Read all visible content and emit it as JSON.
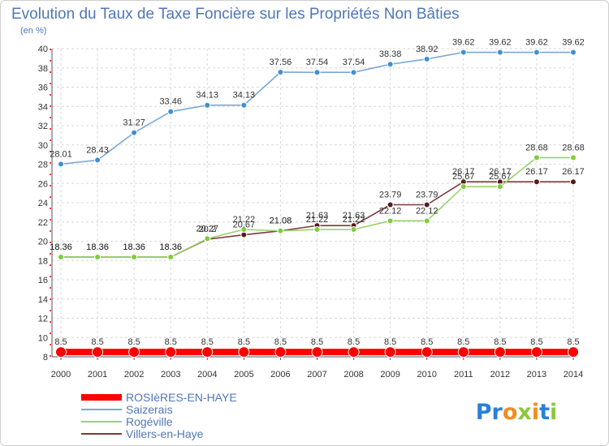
{
  "colors": {
    "grid": "#d9d9d9",
    "axis": "#555555",
    "accent_red": "#ff0000",
    "title": "#4f77b8",
    "logo_blue": "#2b7fd6",
    "logo_orange": "#f28c1e",
    "logo_green": "#8cc63f"
  },
  "logo": {
    "text": "Proxiti"
  },
  "chart_data": {
    "type": "line",
    "title": "Evolution du Taux de Taxe Foncière sur les Propriétés Non Bâties",
    "subtitle": "(en %)",
    "xlabel": "",
    "ylabel": "(en %)",
    "x": [
      "2000",
      "2001",
      "2002",
      "2003",
      "2004",
      "2005",
      "2006",
      "2007",
      "2008",
      "2009",
      "2010",
      "2011",
      "2012",
      "2013",
      "2014"
    ],
    "ylim": [
      8,
      40
    ],
    "yticks": [
      8,
      10,
      12,
      14,
      16,
      18,
      20,
      22,
      24,
      26,
      28,
      30,
      32,
      34,
      36,
      38,
      40
    ],
    "grid": true,
    "legend_position": "bottom-left",
    "series": [
      {
        "name": "ROSIèRES-EN-HAYE",
        "color": "#ff0000",
        "point_color": "#ff0000",
        "values": [
          8.5,
          8.5,
          8.5,
          8.5,
          8.5,
          8.5,
          8.5,
          8.5,
          8.5,
          8.5,
          8.5,
          8.5,
          8.5,
          8.5,
          8.5
        ],
        "labels": [
          "8.5",
          "8.5",
          "8.5",
          "8.5",
          "8.5",
          "8.5",
          "8.5",
          "8.5",
          "8.5",
          "8.5",
          "8.5",
          "8.5",
          "8.5",
          "8.5",
          "8.5"
        ]
      },
      {
        "name": "Saizerais",
        "color": "#7aa7d4",
        "point_color": "#3f8fd2",
        "values": [
          28.01,
          28.43,
          31.27,
          33.46,
          34.13,
          34.13,
          37.56,
          37.54,
          37.54,
          38.38,
          38.92,
          39.62,
          39.62,
          39.62,
          39.62
        ],
        "labels": [
          "28.01",
          "28.43",
          "31.27",
          "33.46",
          "34.13",
          "34.13",
          "37.56",
          "37.54",
          "37.54",
          "38.38",
          "38.92",
          "39.62",
          "39.62",
          "39.62",
          "39.62"
        ]
      },
      {
        "name": "Rogéville",
        "color": "#99d36b",
        "point_color": "#7fcc3f",
        "values": [
          18.36,
          18.36,
          18.36,
          18.36,
          20.27,
          21.22,
          21.08,
          21.22,
          21.22,
          22.12,
          22.12,
          25.67,
          25.67,
          28.68,
          28.68
        ],
        "labels": [
          "18.36",
          "18.36",
          "18.36",
          "18.36",
          "20.27",
          "21.22",
          "21.08",
          "21.22",
          "21.22",
          "22.12",
          "22.12",
          "25.67",
          "25.67",
          "28.68",
          "28.68"
        ]
      },
      {
        "name": "Villers-en-Haye",
        "color": "#7a3a3a",
        "point_color": "#5a1a1a",
        "values": [
          18.36,
          18.36,
          18.36,
          18.36,
          20.2,
          20.67,
          21.08,
          21.63,
          21.63,
          23.79,
          23.79,
          26.17,
          26.17,
          26.17,
          26.17
        ],
        "labels": [
          "18.36",
          "18.36",
          "18.36",
          "18.36",
          "20.2",
          "20.67",
          "21.08",
          "21.63",
          "21.63",
          "23.79",
          "23.79",
          "26.17",
          "26.17",
          "26.17",
          "26.17"
        ]
      }
    ]
  }
}
